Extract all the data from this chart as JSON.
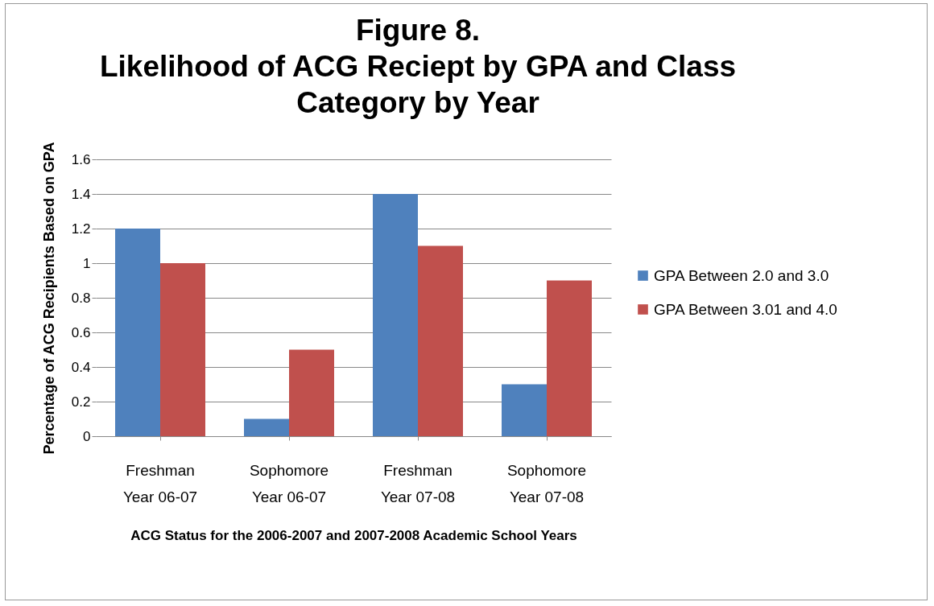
{
  "chart_data": {
    "type": "bar",
    "title": "Figure 8.\nLikelihood of ACG Reciept by GPA and Class\nCategory by Year",
    "xlabel": "ACG Status for the 2006-2007 and 2007-2008 Academic School Years",
    "ylabel": "Percentage of ACG Recipients Based on GPA",
    "categories": [
      "Freshman\nYear 06-07",
      "Sophomore\nYear 06-07",
      "Freshman\nYear 07-08",
      "Sophomore\nYear 07-08"
    ],
    "series": [
      {
        "name": "GPA Between 2.0 and 3.0",
        "color": "#4f81bd",
        "values": [
          1.2,
          0.1,
          1.4,
          0.3
        ]
      },
      {
        "name": "GPA Between 3.01 and 4.0",
        "color": "#c0504d",
        "values": [
          1.0,
          0.5,
          1.1,
          0.9
        ]
      }
    ],
    "ylim": [
      0,
      1.6
    ],
    "yticks": [
      0,
      0.2,
      0.4,
      0.6,
      0.8,
      1,
      1.2,
      1.4,
      1.6
    ],
    "grid": "y",
    "legend": "right"
  }
}
